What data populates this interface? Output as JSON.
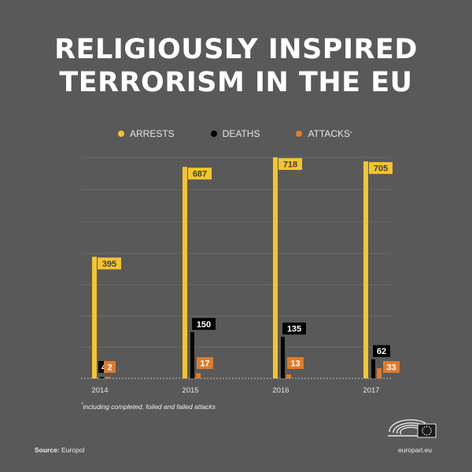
{
  "title_line1": "RELIGIOUSLY INSPIRED",
  "title_line2": "TERRORISM IN THE EU",
  "legend": [
    {
      "label": "ARRESTS",
      "color": "#f4c430"
    },
    {
      "label": "DEATHS",
      "color": "#000000"
    },
    {
      "label": "ATTACKS",
      "color": "#e07b2a"
    }
  ],
  "legend_attacks_marker": "*",
  "footnote_marker": "*",
  "footnote_text": "including completed, foiled and failed attacks",
  "source_label": "Source:",
  "source_value": "Europol",
  "site": "europarl.eu",
  "chart_data": {
    "type": "bar",
    "categories": [
      "2014",
      "2015",
      "2016",
      "2017"
    ],
    "series": [
      {
        "name": "ARRESTS",
        "color": "#f4c430",
        "values": [
          395,
          687,
          718,
          705
        ]
      },
      {
        "name": "DEATHS",
        "color": "#000000",
        "values": [
          4,
          150,
          135,
          62
        ]
      },
      {
        "name": "ATTACKS",
        "color": "#e07b2a",
        "values": [
          2,
          17,
          13,
          33
        ]
      }
    ],
    "grid": true,
    "legend_position": "top"
  }
}
